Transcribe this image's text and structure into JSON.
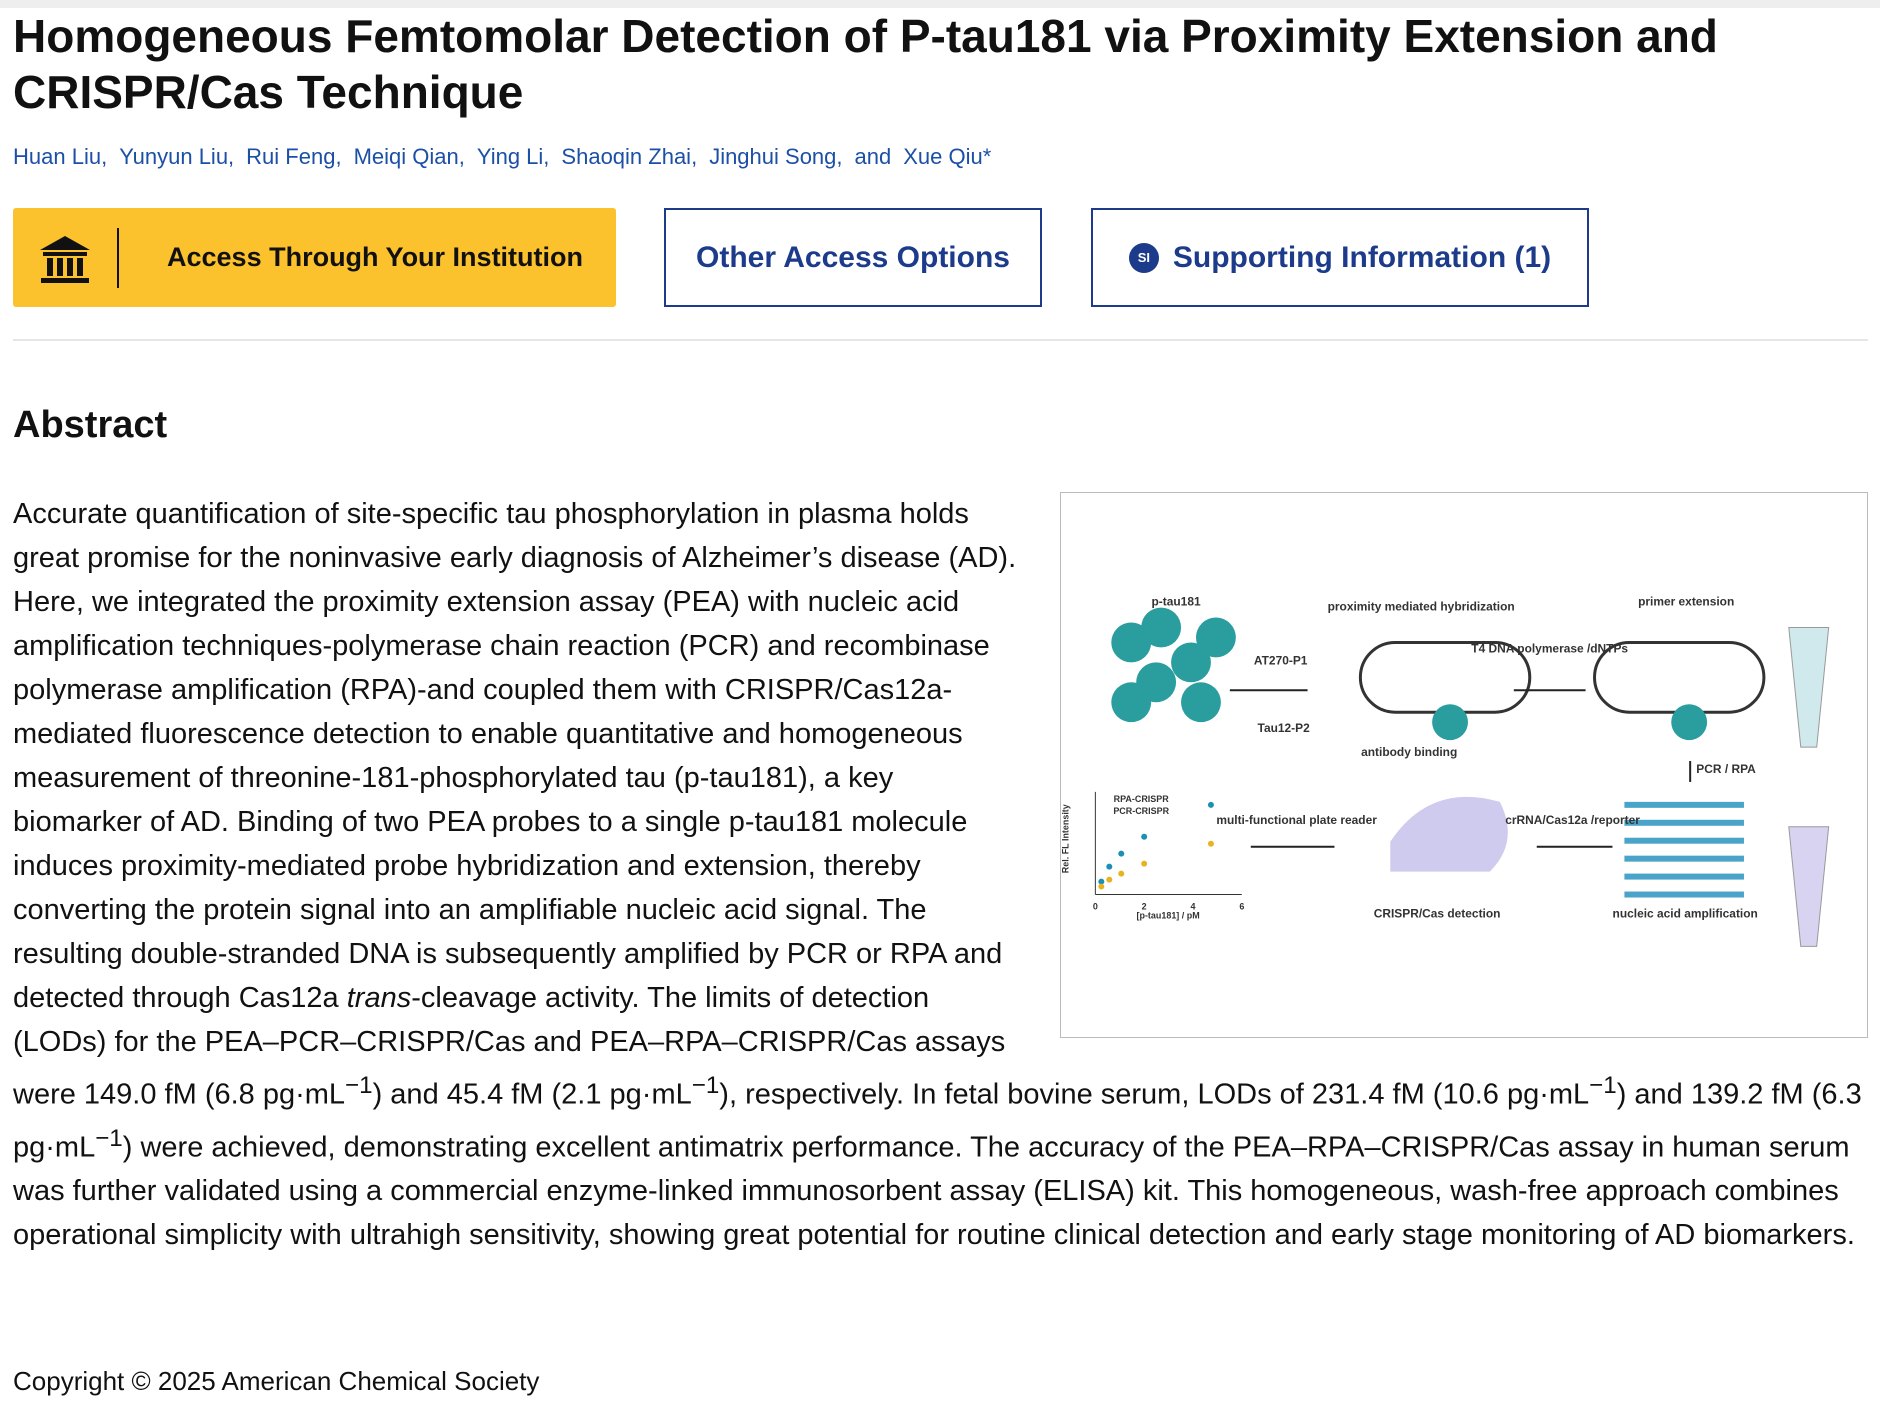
{
  "header": {
    "title": "Homogeneous Femtomolar Detection of P-tau181 via Proximity Extension and CRISPR/Cas Technique",
    "authors": [
      "Huan Liu,",
      "Yunyun Liu,",
      "Rui Feng,",
      "Meiqi Qian,",
      "Ying Li,",
      "Shaoqin Zhai,",
      "Jinghui Song,",
      "and",
      "Xue Qiu*"
    ]
  },
  "buttons": {
    "institution": "Access Through Your Institution",
    "other": "Other Access Options",
    "si_icon": "SI",
    "supporting": "Supporting Information (1)"
  },
  "abstract": {
    "heading": "Abstract",
    "parts": [
      "Accurate quantification of site-specific tau phosphorylation in plasma holds great promise for the noninvasive early diagnosis of Alzheimer’s disease (AD). Here, we integrated the proximity extension assay (PEA) with nucleic acid amplification techniques-polymerase chain reaction (PCR) and recombinase polymerase amplification (RPA)-and coupled them with CRISPR/Cas12a-mediated fluorescence detection to enable quantitative and homogeneous measurement of threonine-181-phosphorylated tau (p-tau181), a key biomarker of AD. Binding of two PEA probes to a single p-tau181 molecule induces proximity-mediated probe hybridization and extension, thereby converting the protein signal into an amplifiable nucleic acid signal. The resulting double-stranded DNA is subsequently amplified by PCR or RPA and detected through Cas12a ",
      "trans",
      "-cleavage activity. The limits of detection (LODs) for the PEA–PCR–CRISPR/Cas and PEA–RPA–CRISPR/Cas assays were 149.0 fM (6.8 pg·mL",
      "−1",
      ") and 45.4 fM (2.1 pg·mL",
      "−1",
      "), respectively. In fetal bovine serum, LODs of 231.4 fM (10.6 pg·mL",
      "−1",
      ") and 139.2 fM (6.3 pg·mL",
      "−1",
      ") were achieved, demonstrating excellent antimatrix performance. The accuracy of the PEA–RPA–CRISPR/Cas assay in human serum was further validated using a commercial enzyme-linked immunosorbent assay (ELISA) kit. This homogeneous, wash-free approach combines operational simplicity with ultrahigh sensitivity, showing great potential for routine clinical detection and early stage monitoring of AD biomarkers."
    ]
  },
  "figure": {
    "labels": [
      "p-tau181",
      "AT270-P1",
      "Tau12-P2",
      "proximity mediated hybridization",
      "antibody binding",
      "T4 DNA polymerase /dNTPs",
      "primer extension",
      "PCR / RPA",
      "crRNA/Cas12a /reporter",
      "multi-functional plate reader",
      "CRISPR/Cas detection",
      "nucleic acid amplification",
      "Rel. FL Intensity",
      "[p-tau181] / pM",
      "RPA-CRISPR",
      "PCR-CRISPR",
      "0",
      "2",
      "4",
      "6"
    ]
  },
  "footer": {
    "copyright": "Copyright © 2025 American Chemical Society"
  }
}
